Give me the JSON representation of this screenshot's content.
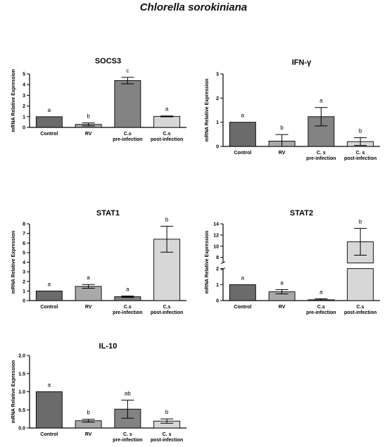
{
  "figure_title": "Chlorella sorokiniana",
  "chart_data": [
    {
      "type": "bar",
      "title": "SOCS3",
      "ylabel": "mRNA Relative Expression",
      "ylim": [
        0,
        5
      ],
      "yticks": [
        0,
        1,
        2,
        3,
        4,
        5
      ],
      "categories": [
        [
          "Control"
        ],
        [
          "RV"
        ],
        [
          "C.s",
          "pre-infection"
        ],
        [
          "C.s",
          "post-infection"
        ]
      ],
      "values": [
        1.0,
        0.28,
        4.38,
        1.03
      ],
      "errors": [
        0.0,
        0.14,
        0.3,
        0.04
      ],
      "significance": [
        "a",
        "b",
        "c",
        "a"
      ],
      "colors": [
        "#6b6b6b",
        "#a9a9a9",
        "#838383",
        "#d7d7d7"
      ]
    },
    {
      "type": "bar",
      "title": "IFN-γ",
      "ylabel": "mRNA Relative Expression",
      "ylim": [
        0,
        3
      ],
      "yticks": [
        0,
        1,
        2,
        3
      ],
      "categories": [
        [
          "Control"
        ],
        [
          "RV"
        ],
        [
          "C. s",
          "pre-infection"
        ],
        [
          "C. s",
          "post-infection"
        ]
      ],
      "values": [
        1.0,
        0.22,
        1.23,
        0.2
      ],
      "errors": [
        0.0,
        0.27,
        0.38,
        0.16
      ],
      "significance": [
        "a",
        "b",
        "a",
        "b"
      ],
      "colors": [
        "#6b6b6b",
        "#a9a9a9",
        "#838383",
        "#d7d7d7"
      ]
    },
    {
      "type": "bar",
      "title": "STAT1",
      "ylabel": "mRNA Relative Expression",
      "ylim": [
        0,
        8
      ],
      "yticks": [
        0,
        1,
        2,
        3,
        4,
        5,
        6,
        7,
        8
      ],
      "categories": [
        [
          "Control"
        ],
        [
          "RV"
        ],
        [
          "C.s",
          "pre-infection"
        ],
        [
          "C.s",
          "post-infection"
        ]
      ],
      "values": [
        1.0,
        1.48,
        0.4,
        6.4
      ],
      "errors": [
        0.0,
        0.2,
        0.08,
        1.35
      ],
      "significance": [
        "a",
        "a",
        "a",
        "b"
      ],
      "colors": [
        "#6b6b6b",
        "#a9a9a9",
        "#838383",
        "#d7d7d7"
      ]
    },
    {
      "type": "bar",
      "title": "STAT2",
      "ylabel": "mRNA Relative Expression",
      "axis_break": {
        "lower": [
          0,
          2
        ],
        "upper": [
          7,
          14
        ]
      },
      "yticks": [
        0,
        1,
        2,
        8,
        10,
        12,
        14
      ],
      "categories": [
        [
          "Control"
        ],
        [
          "RV"
        ],
        [
          "C.s",
          "pre-infection"
        ],
        [
          "C.s",
          "post-infection"
        ]
      ],
      "values": [
        1.0,
        0.55,
        0.05,
        10.8
      ],
      "errors": [
        0.0,
        0.13,
        0.06,
        2.4
      ],
      "significance": [
        "a",
        "a",
        "a",
        "b"
      ],
      "colors": [
        "#6b6b6b",
        "#a9a9a9",
        "#838383",
        "#d7d7d7"
      ]
    },
    {
      "type": "bar",
      "title": "IL-10",
      "ylabel": "mRNA Relative Expression",
      "ylim": [
        0,
        2.0
      ],
      "yticks": [
        "0.0",
        "0.5",
        "1.0",
        "1.5",
        "2.0"
      ],
      "categories": [
        [
          "Control"
        ],
        [
          "RV"
        ],
        [
          "C. s",
          "pre-infection"
        ],
        [
          "C. s",
          "post-infection"
        ]
      ],
      "values": [
        1.0,
        0.2,
        0.52,
        0.19
      ],
      "errors": [
        0.0,
        0.04,
        0.25,
        0.06
      ],
      "significance": [
        "a",
        "b",
        "ab",
        "b"
      ],
      "colors": [
        "#6b6b6b",
        "#a9a9a9",
        "#838383",
        "#d7d7d7"
      ]
    }
  ]
}
